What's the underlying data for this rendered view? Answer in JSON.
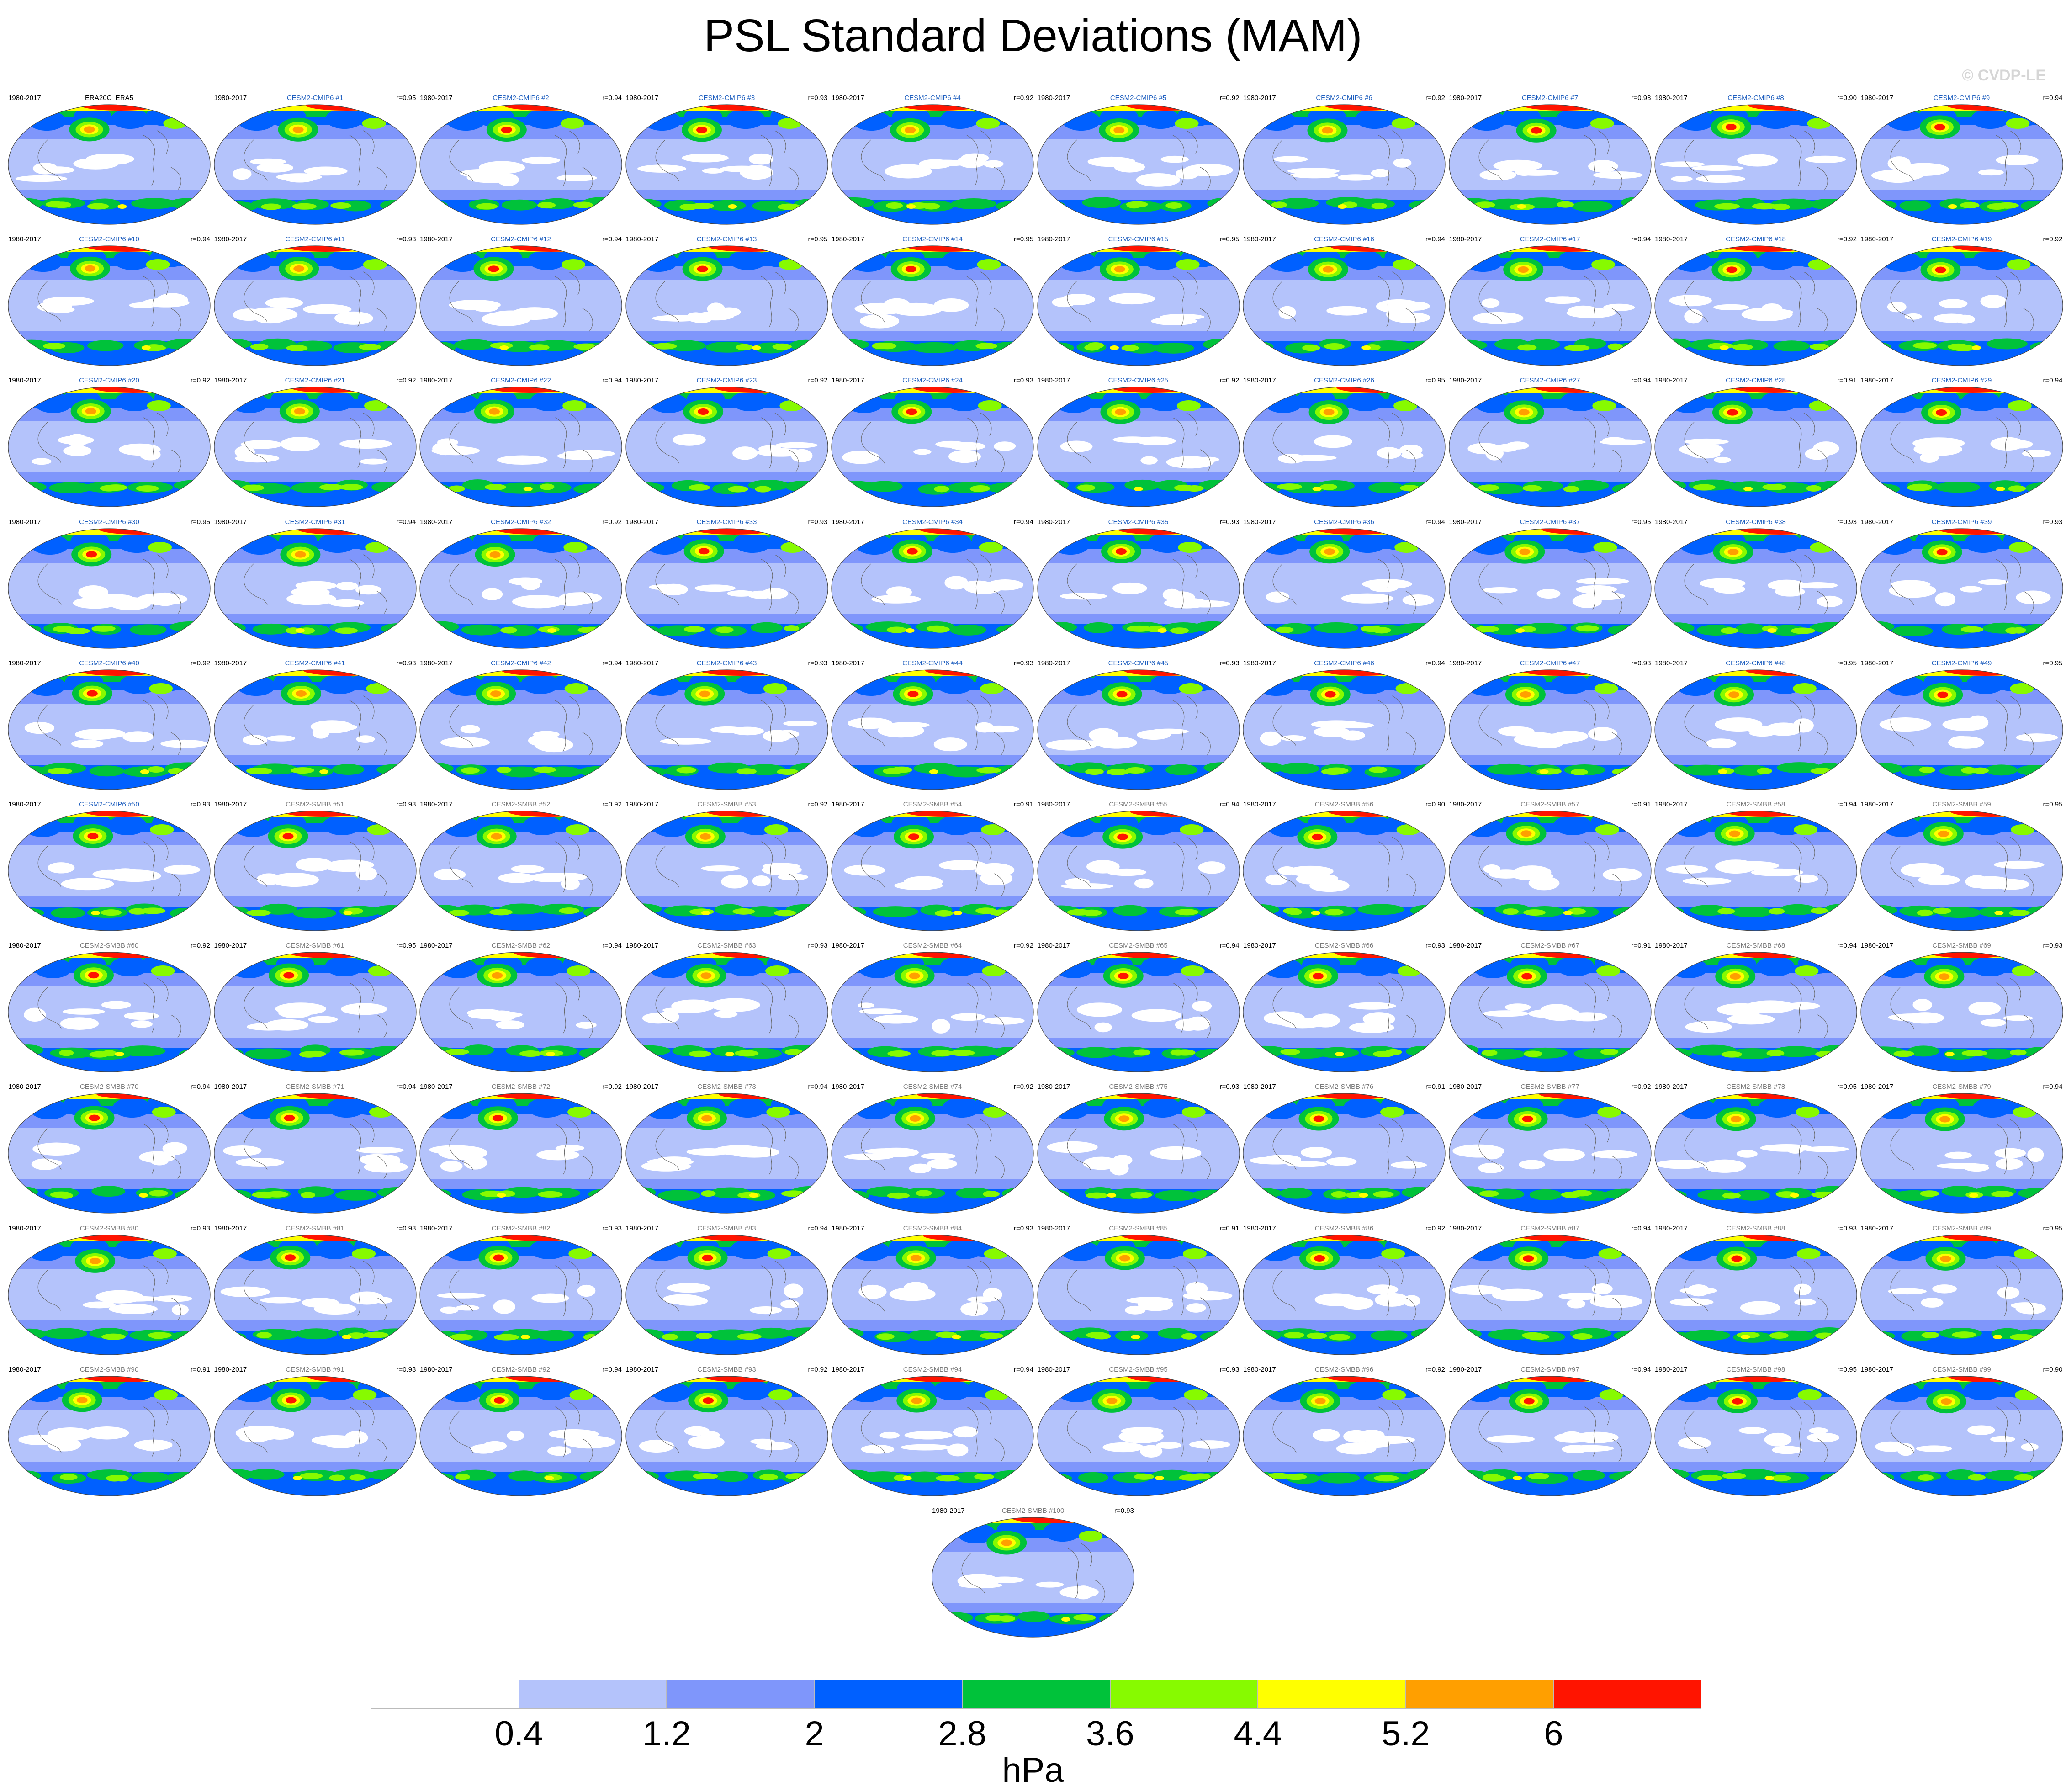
{
  "title": "PSL Standard Deviations (MAM)",
  "copyright": "© CVDP-LE",
  "colorbar": {
    "colors": [
      "#ffffff",
      "#b4c3fb",
      "#7f96fb",
      "#0060ff",
      "#00c23a",
      "#87fa00",
      "#ffff00",
      "#ff9f00",
      "#ff1400"
    ],
    "ticks": [
      "0.4",
      "1.2",
      "2",
      "2.8",
      "3.6",
      "4.4",
      "5.2",
      "6"
    ],
    "units": "hPa"
  },
  "panels": [
    {
      "name": "ERA20C_ERA5",
      "period": "1980-2017",
      "corr": ""
    },
    {
      "name": "CESM2-CMIP6 #1",
      "period": "1980-2017",
      "corr": "r=0.95"
    },
    {
      "name": "CESM2-CMIP6 #2",
      "period": "1980-2017",
      "corr": "r=0.94"
    },
    {
      "name": "CESM2-CMIP6 #3",
      "period": "1980-2017",
      "corr": "r=0.93"
    },
    {
      "name": "CESM2-CMIP6 #4",
      "period": "1980-2017",
      "corr": "r=0.92"
    },
    {
      "name": "CESM2-CMIP6 #5",
      "period": "1980-2017",
      "corr": "r=0.92"
    },
    {
      "name": "CESM2-CMIP6 #6",
      "period": "1980-2017",
      "corr": "r=0.92"
    },
    {
      "name": "CESM2-CMIP6 #7",
      "period": "1980-2017",
      "corr": "r=0.93"
    },
    {
      "name": "CESM2-CMIP6 #8",
      "period": "1980-2017",
      "corr": "r=0.90"
    },
    {
      "name": "CESM2-CMIP6 #9",
      "period": "1980-2017",
      "corr": "r=0.94"
    },
    {
      "name": "CESM2-CMIP6 #10",
      "period": "1980-2017",
      "corr": "r=0.94"
    },
    {
      "name": "CESM2-CMIP6 #11",
      "period": "1980-2017",
      "corr": "r=0.93"
    },
    {
      "name": "CESM2-CMIP6 #12",
      "period": "1980-2017",
      "corr": "r=0.94"
    },
    {
      "name": "CESM2-CMIP6 #13",
      "period": "1980-2017",
      "corr": "r=0.95"
    },
    {
      "name": "CESM2-CMIP6 #14",
      "period": "1980-2017",
      "corr": "r=0.95"
    },
    {
      "name": "CESM2-CMIP6 #15",
      "period": "1980-2017",
      "corr": "r=0.95"
    },
    {
      "name": "CESM2-CMIP6 #16",
      "period": "1980-2017",
      "corr": "r=0.94"
    },
    {
      "name": "CESM2-CMIP6 #17",
      "period": "1980-2017",
      "corr": "r=0.94"
    },
    {
      "name": "CESM2-CMIP6 #18",
      "period": "1980-2017",
      "corr": "r=0.92"
    },
    {
      "name": "CESM2-CMIP6 #19",
      "period": "1980-2017",
      "corr": "r=0.92"
    },
    {
      "name": "CESM2-CMIP6 #20",
      "period": "1980-2017",
      "corr": "r=0.92"
    },
    {
      "name": "CESM2-CMIP6 #21",
      "period": "1980-2017",
      "corr": "r=0.92"
    },
    {
      "name": "CESM2-CMIP6 #22",
      "period": "1980-2017",
      "corr": "r=0.94"
    },
    {
      "name": "CESM2-CMIP6 #23",
      "period": "1980-2017",
      "corr": "r=0.92"
    },
    {
      "name": "CESM2-CMIP6 #24",
      "period": "1980-2017",
      "corr": "r=0.93"
    },
    {
      "name": "CESM2-CMIP6 #25",
      "period": "1980-2017",
      "corr": "r=0.92"
    },
    {
      "name": "CESM2-CMIP6 #26",
      "period": "1980-2017",
      "corr": "r=0.95"
    },
    {
      "name": "CESM2-CMIP6 #27",
      "period": "1980-2017",
      "corr": "r=0.94"
    },
    {
      "name": "CESM2-CMIP6 #28",
      "period": "1980-2017",
      "corr": "r=0.91"
    },
    {
      "name": "CESM2-CMIP6 #29",
      "period": "1980-2017",
      "corr": "r=0.94"
    },
    {
      "name": "CESM2-CMIP6 #30",
      "period": "1980-2017",
      "corr": "r=0.95"
    },
    {
      "name": "CESM2-CMIP6 #31",
      "period": "1980-2017",
      "corr": "r=0.94"
    },
    {
      "name": "CESM2-CMIP6 #32",
      "period": "1980-2017",
      "corr": "r=0.92"
    },
    {
      "name": "CESM2-CMIP6 #33",
      "period": "1980-2017",
      "corr": "r=0.93"
    },
    {
      "name": "CESM2-CMIP6 #34",
      "period": "1980-2017",
      "corr": "r=0.94"
    },
    {
      "name": "CESM2-CMIP6 #35",
      "period": "1980-2017",
      "corr": "r=0.93"
    },
    {
      "name": "CESM2-CMIP6 #36",
      "period": "1980-2017",
      "corr": "r=0.94"
    },
    {
      "name": "CESM2-CMIP6 #37",
      "period": "1980-2017",
      "corr": "r=0.95"
    },
    {
      "name": "CESM2-CMIP6 #38",
      "period": "1980-2017",
      "corr": "r=0.93"
    },
    {
      "name": "CESM2-CMIP6 #39",
      "period": "1980-2017",
      "corr": "r=0.93"
    },
    {
      "name": "CESM2-CMIP6 #40",
      "period": "1980-2017",
      "corr": "r=0.92"
    },
    {
      "name": "CESM2-CMIP6 #41",
      "period": "1980-2017",
      "corr": "r=0.93"
    },
    {
      "name": "CESM2-CMIP6 #42",
      "period": "1980-2017",
      "corr": "r=0.94"
    },
    {
      "name": "CESM2-CMIP6 #43",
      "period": "1980-2017",
      "corr": "r=0.93"
    },
    {
      "name": "CESM2-CMIP6 #44",
      "period": "1980-2017",
      "corr": "r=0.93"
    },
    {
      "name": "CESM2-CMIP6 #45",
      "period": "1980-2017",
      "corr": "r=0.93"
    },
    {
      "name": "CESM2-CMIP6 #46",
      "period": "1980-2017",
      "corr": "r=0.94"
    },
    {
      "name": "CESM2-CMIP6 #47",
      "period": "1980-2017",
      "corr": "r=0.93"
    },
    {
      "name": "CESM2-CMIP6 #48",
      "period": "1980-2017",
      "corr": "r=0.95"
    },
    {
      "name": "CESM2-CMIP6 #49",
      "period": "1980-2017",
      "corr": "r=0.95"
    },
    {
      "name": "CESM2-CMIP6 #50",
      "period": "1980-2017",
      "corr": "r=0.93"
    },
    {
      "name": "CESM2-SMBB #51",
      "period": "1980-2017",
      "corr": "r=0.93"
    },
    {
      "name": "CESM2-SMBB #52",
      "period": "1980-2017",
      "corr": "r=0.92"
    },
    {
      "name": "CESM2-SMBB #53",
      "period": "1980-2017",
      "corr": "r=0.92"
    },
    {
      "name": "CESM2-SMBB #54",
      "period": "1980-2017",
      "corr": "r=0.91"
    },
    {
      "name": "CESM2-SMBB #55",
      "period": "1980-2017",
      "corr": "r=0.94"
    },
    {
      "name": "CESM2-SMBB #56",
      "period": "1980-2017",
      "corr": "r=0.90"
    },
    {
      "name": "CESM2-SMBB #57",
      "period": "1980-2017",
      "corr": "r=0.91"
    },
    {
      "name": "CESM2-SMBB #58",
      "period": "1980-2017",
      "corr": "r=0.94"
    },
    {
      "name": "CESM2-SMBB #59",
      "period": "1980-2017",
      "corr": "r=0.95"
    },
    {
      "name": "CESM2-SMBB #60",
      "period": "1980-2017",
      "corr": "r=0.92"
    },
    {
      "name": "CESM2-SMBB #61",
      "period": "1980-2017",
      "corr": "r=0.95"
    },
    {
      "name": "CESM2-SMBB #62",
      "period": "1980-2017",
      "corr": "r=0.94"
    },
    {
      "name": "CESM2-SMBB #63",
      "period": "1980-2017",
      "corr": "r=0.93"
    },
    {
      "name": "CESM2-SMBB #64",
      "period": "1980-2017",
      "corr": "r=0.92"
    },
    {
      "name": "CESM2-SMBB #65",
      "period": "1980-2017",
      "corr": "r=0.94"
    },
    {
      "name": "CESM2-SMBB #66",
      "period": "1980-2017",
      "corr": "r=0.93"
    },
    {
      "name": "CESM2-SMBB #67",
      "period": "1980-2017",
      "corr": "r=0.91"
    },
    {
      "name": "CESM2-SMBB #68",
      "period": "1980-2017",
      "corr": "r=0.94"
    },
    {
      "name": "CESM2-SMBB #69",
      "period": "1980-2017",
      "corr": "r=0.93"
    },
    {
      "name": "CESM2-SMBB #70",
      "period": "1980-2017",
      "corr": "r=0.94"
    },
    {
      "name": "CESM2-SMBB #71",
      "period": "1980-2017",
      "corr": "r=0.94"
    },
    {
      "name": "CESM2-SMBB #72",
      "period": "1980-2017",
      "corr": "r=0.92"
    },
    {
      "name": "CESM2-SMBB #73",
      "period": "1980-2017",
      "corr": "r=0.94"
    },
    {
      "name": "CESM2-SMBB #74",
      "period": "1980-2017",
      "corr": "r=0.92"
    },
    {
      "name": "CESM2-SMBB #75",
      "period": "1980-2017",
      "corr": "r=0.93"
    },
    {
      "name": "CESM2-SMBB #76",
      "period": "1980-2017",
      "corr": "r=0.91"
    },
    {
      "name": "CESM2-SMBB #77",
      "period": "1980-2017",
      "corr": "r=0.92"
    },
    {
      "name": "CESM2-SMBB #78",
      "period": "1980-2017",
      "corr": "r=0.95"
    },
    {
      "name": "CESM2-SMBB #79",
      "period": "1980-2017",
      "corr": "r=0.94"
    },
    {
      "name": "CESM2-SMBB #80",
      "period": "1980-2017",
      "corr": "r=0.93"
    },
    {
      "name": "CESM2-SMBB #81",
      "period": "1980-2017",
      "corr": "r=0.93"
    },
    {
      "name": "CESM2-SMBB #82",
      "period": "1980-2017",
      "corr": "r=0.93"
    },
    {
      "name": "CESM2-SMBB #83",
      "period": "1980-2017",
      "corr": "r=0.94"
    },
    {
      "name": "CESM2-SMBB #84",
      "period": "1980-2017",
      "corr": "r=0.93"
    },
    {
      "name": "CESM2-SMBB #85",
      "period": "1980-2017",
      "corr": "r=0.91"
    },
    {
      "name": "CESM2-SMBB #86",
      "period": "1980-2017",
      "corr": "r=0.92"
    },
    {
      "name": "CESM2-SMBB #87",
      "period": "1980-2017",
      "corr": "r=0.94"
    },
    {
      "name": "CESM2-SMBB #88",
      "period": "1980-2017",
      "corr": "r=0.93"
    },
    {
      "name": "CESM2-SMBB #89",
      "period": "1980-2017",
      "corr": "r=0.95"
    },
    {
      "name": "CESM2-SMBB #90",
      "period": "1980-2017",
      "corr": "r=0.91"
    },
    {
      "name": "CESM2-SMBB #91",
      "period": "1980-2017",
      "corr": "r=0.93"
    },
    {
      "name": "CESM2-SMBB #92",
      "period": "1980-2017",
      "corr": "r=0.94"
    },
    {
      "name": "CESM2-SMBB #93",
      "period": "1980-2017",
      "corr": "r=0.92"
    },
    {
      "name": "CESM2-SMBB #94",
      "period": "1980-2017",
      "corr": "r=0.94"
    },
    {
      "name": "CESM2-SMBB #95",
      "period": "1980-2017",
      "corr": "r=0.93"
    },
    {
      "name": "CESM2-SMBB #96",
      "period": "1980-2017",
      "corr": "r=0.92"
    },
    {
      "name": "CESM2-SMBB #97",
      "period": "1980-2017",
      "corr": "r=0.94"
    },
    {
      "name": "CESM2-SMBB #98",
      "period": "1980-2017",
      "corr": "r=0.95"
    },
    {
      "name": "CESM2-SMBB #99",
      "period": "1980-2017",
      "corr": "r=0.90"
    },
    {
      "name": "CESM2-SMBB #100",
      "period": "1980-2017",
      "corr": "r=0.93"
    }
  ]
}
